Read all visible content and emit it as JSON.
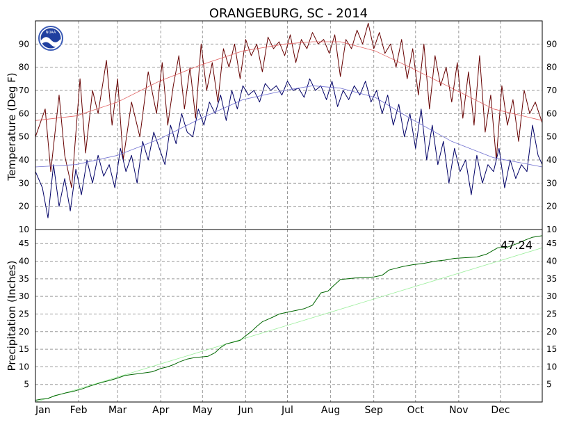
{
  "title": "ORANGEBURG, SC - 2014",
  "logo_text": "NOAA",
  "colors": {
    "max_temp": "#660000",
    "normal_max": "#e06060",
    "min_temp": "#000066",
    "normal_min": "#7070d0",
    "precip": "#006600",
    "normal_precip": "#99ee99",
    "grid": "#999999",
    "frame": "#000000"
  },
  "chart_data": [
    {
      "type": "line",
      "title": "ORANGEBURG, SC - 2014",
      "ylabel": "Temperature (Deg F)",
      "ylim": [
        10,
        100
      ],
      "yticks": [
        10,
        20,
        30,
        40,
        50,
        60,
        70,
        80,
        90
      ],
      "xlim": [
        1,
        365
      ],
      "grid": true,
      "series": [
        {
          "role": "max_temp",
          "color": "#660000",
          "x": [
            1,
            8,
            12,
            18,
            22,
            27,
            33,
            37,
            42,
            46,
            52,
            56,
            60,
            64,
            70,
            76,
            82,
            88,
            92,
            96,
            100,
            104,
            108,
            112,
            116,
            120,
            124,
            128,
            132,
            136,
            140,
            144,
            148,
            152,
            156,
            160,
            164,
            168,
            172,
            176,
            180,
            184,
            188,
            192,
            196,
            200,
            204,
            208,
            212,
            216,
            220,
            224,
            228,
            232,
            236,
            240,
            244,
            248,
            252,
            256,
            260,
            264,
            268,
            272,
            276,
            280,
            284,
            288,
            292,
            296,
            300,
            304,
            308,
            312,
            316,
            320,
            324,
            328,
            332,
            336,
            340,
            344,
            348,
            352,
            356,
            360,
            365
          ],
          "y": [
            50,
            62,
            35,
            68,
            42,
            28,
            75,
            43,
            70,
            60,
            83,
            55,
            75,
            40,
            65,
            50,
            78,
            60,
            82,
            55,
            72,
            85,
            62,
            80,
            58,
            90,
            70,
            82,
            65,
            88,
            80,
            90,
            75,
            92,
            85,
            90,
            78,
            93,
            88,
            91,
            85,
            94,
            82,
            92,
            88,
            95,
            90,
            92,
            86,
            94,
            76,
            92,
            88,
            96,
            90,
            99,
            88,
            95,
            86,
            90,
            80,
            92,
            75,
            88,
            68,
            90,
            62,
            85,
            72,
            80,
            65,
            82,
            58,
            78,
            55,
            85,
            52,
            68,
            40,
            72,
            55,
            66,
            48,
            70,
            60,
            65,
            56
          ]
        },
        {
          "role": "normal_max",
          "color": "#e06060",
          "x": [
            1,
            30,
            60,
            90,
            120,
            150,
            180,
            200,
            220,
            245,
            270,
            300,
            330,
            365
          ],
          "y": [
            57,
            59,
            65,
            74,
            81,
            87,
            90,
            91,
            91,
            87,
            80,
            71,
            62,
            57
          ]
        },
        {
          "role": "min_temp",
          "color": "#000066",
          "x": [
            1,
            6,
            10,
            14,
            18,
            22,
            26,
            30,
            34,
            38,
            42,
            46,
            50,
            54,
            58,
            62,
            66,
            70,
            74,
            78,
            82,
            86,
            90,
            94,
            98,
            102,
            106,
            110,
            114,
            118,
            122,
            126,
            130,
            134,
            138,
            142,
            146,
            150,
            154,
            158,
            162,
            166,
            170,
            174,
            178,
            182,
            186,
            190,
            194,
            198,
            202,
            206,
            210,
            214,
            218,
            222,
            226,
            230,
            234,
            238,
            242,
            246,
            250,
            254,
            258,
            262,
            266,
            270,
            274,
            278,
            282,
            286,
            290,
            294,
            298,
            302,
            306,
            310,
            314,
            318,
            322,
            326,
            330,
            334,
            338,
            342,
            346,
            350,
            354,
            358,
            362,
            365
          ],
          "y": [
            35,
            28,
            15,
            38,
            20,
            32,
            18,
            36,
            25,
            40,
            30,
            42,
            33,
            38,
            28,
            45,
            35,
            42,
            30,
            48,
            40,
            52,
            45,
            38,
            55,
            47,
            60,
            52,
            50,
            62,
            55,
            65,
            60,
            68,
            57,
            70,
            62,
            72,
            68,
            70,
            65,
            73,
            70,
            72,
            68,
            74,
            70,
            71,
            67,
            75,
            70,
            72,
            66,
            74,
            63,
            70,
            66,
            72,
            68,
            74,
            65,
            70,
            60,
            68,
            55,
            64,
            50,
            60,
            45,
            62,
            40,
            55,
            38,
            48,
            30,
            45,
            35,
            40,
            25,
            42,
            30,
            38,
            35,
            45,
            28,
            40,
            32,
            38,
            35,
            55,
            42,
            38
          ]
        },
        {
          "role": "normal_min",
          "color": "#7070d0",
          "x": [
            1,
            30,
            60,
            90,
            120,
            150,
            180,
            200,
            220,
            245,
            270,
            300,
            330,
            365
          ],
          "y": [
            37,
            38,
            42,
            49,
            58,
            66,
            70,
            72,
            71,
            67,
            58,
            48,
            41,
            37
          ]
        }
      ]
    },
    {
      "type": "line",
      "ylabel": "Precipitation (Inches)",
      "ylim": [
        0,
        49
      ],
      "yticks": [
        5,
        10,
        15,
        20,
        25,
        30,
        35,
        40,
        45
      ],
      "xlim": [
        1,
        365
      ],
      "grid": true,
      "annotation": "47.24",
      "categories": [
        "Jan",
        "Feb",
        "Mar",
        "Apr",
        "May",
        "Jun",
        "Jul",
        "Aug",
        "Sep",
        "Oct",
        "Nov",
        "Dec"
      ],
      "category_starts": [
        1,
        32,
        60,
        91,
        121,
        152,
        182,
        213,
        244,
        274,
        305,
        335
      ],
      "series": [
        {
          "role": "precip",
          "color": "#006600",
          "x": [
            1,
            5,
            10,
            15,
            22,
            28,
            35,
            40,
            48,
            55,
            60,
            65,
            70,
            78,
            85,
            91,
            96,
            100,
            105,
            110,
            115,
            120,
            125,
            130,
            134,
            138,
            143,
            148,
            152,
            156,
            160,
            164,
            168,
            172,
            176,
            182,
            188,
            194,
            200,
            206,
            211,
            215,
            220,
            225,
            230,
            236,
            244,
            250,
            255,
            260,
            265,
            272,
            280,
            288,
            295,
            302,
            310,
            318,
            325,
            333,
            340,
            347,
            352,
            358,
            365
          ],
          "y": [
            0.5,
            0.8,
            1.0,
            1.8,
            2.5,
            3.0,
            3.8,
            4.5,
            5.5,
            6.2,
            6.8,
            7.5,
            7.8,
            8.2,
            8.6,
            9.5,
            10.0,
            10.6,
            11.5,
            12.2,
            12.6,
            12.8,
            13.0,
            14.0,
            15.5,
            16.5,
            17.0,
            17.5,
            18.8,
            20.0,
            21.5,
            22.8,
            23.5,
            24.2,
            25.0,
            25.5,
            26.0,
            26.5,
            27.5,
            31.0,
            31.5,
            33.0,
            34.8,
            35.0,
            35.2,
            35.3,
            35.5,
            36.0,
            37.5,
            38.0,
            38.5,
            39.0,
            39.4,
            40.0,
            40.3,
            40.8,
            41.0,
            41.2,
            42.0,
            43.8,
            44.0,
            45.0,
            45.9,
            46.8,
            47.24
          ]
        },
        {
          "role": "normal_precip",
          "color": "#99ee99",
          "x": [
            1,
            365
          ],
          "y": [
            0,
            43.8
          ]
        }
      ]
    }
  ]
}
